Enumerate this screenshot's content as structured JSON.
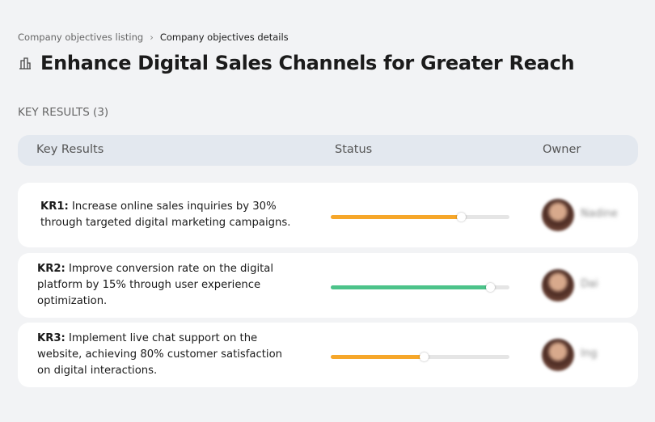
{
  "breadcrumb": {
    "parent": "Company objectives listing",
    "current": "Company objectives details"
  },
  "title": "Enhance Digital Sales Channels for Greater Reach",
  "section_label": "KEY RESULTS (3)",
  "table": {
    "headers": [
      "Key Results",
      "Status",
      "Owner"
    ],
    "rows": [
      {
        "label": "KR1:",
        "text": "Increase online sales inquiries by 30% through targeted digital marketing campaigns.",
        "progress": 73,
        "color": "#f6a72a",
        "owner": "Nadine"
      },
      {
        "label": "KR2:",
        "text": "Improve conversion rate on the digital platform by 15% through user experience optimization.",
        "progress": 89,
        "color": "#4cc38a",
        "owner": "Dai"
      },
      {
        "label": "KR3:",
        "text": "Implement live chat support on the website, achieving 80% customer satisfaction on digital interactions.",
        "progress": 52,
        "color": "#f6a72a",
        "owner": "Ing"
      }
    ]
  }
}
